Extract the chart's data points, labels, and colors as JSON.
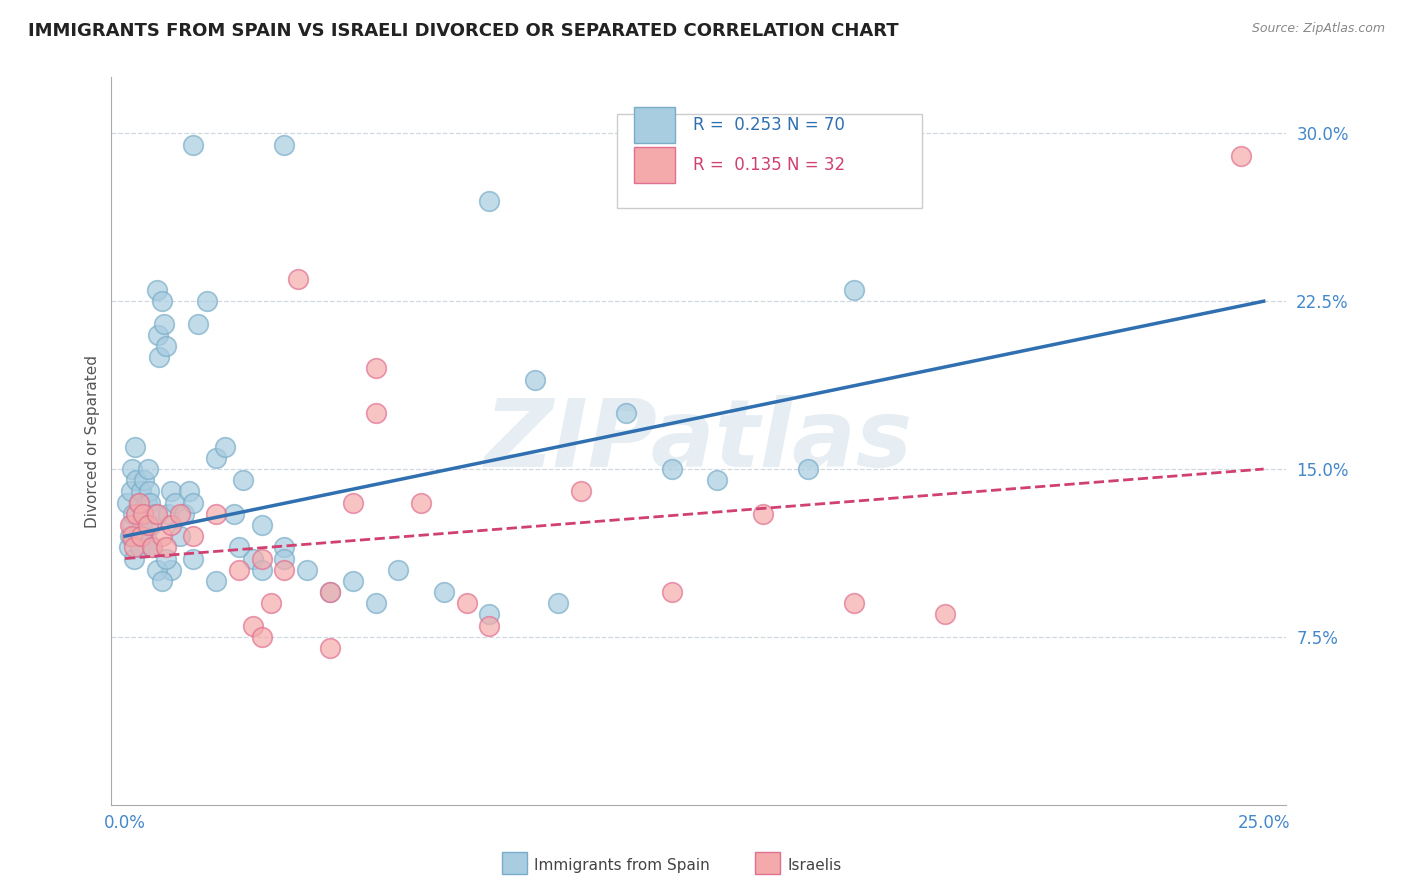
{
  "title": "IMMIGRANTS FROM SPAIN VS ISRAELI DIVORCED OR SEPARATED CORRELATION CHART",
  "source_text": "Source: ZipAtlas.com",
  "ylabel": "Divorced or Separated",
  "watermark": "ZIPatlas",
  "xlim": [
    -0.3,
    25.5
  ],
  "ylim": [
    0.0,
    32.5
  ],
  "xticks": [
    0.0,
    5.0,
    10.0,
    15.0,
    20.0,
    25.0
  ],
  "xticklabels": [
    "0.0%",
    "",
    "",
    "",
    "",
    "25.0%"
  ],
  "yticks": [
    7.5,
    15.0,
    22.5,
    30.0
  ],
  "yticklabels": [
    "7.5%",
    "15.0%",
    "22.5%",
    "30.0%"
  ],
  "legend_blue_R": "0.253",
  "legend_blue_N": "70",
  "legend_pink_R": "0.135",
  "legend_pink_N": "32",
  "legend_blue_label": "Immigrants from Spain",
  "legend_pink_label": "Israelis",
  "blue_color": "#a8cce0",
  "pink_color": "#f4aaaa",
  "blue_edge_color": "#7aadc8",
  "pink_edge_color": "#e07090",
  "blue_line_color": "#3070b0",
  "pink_line_color": "#d04070",
  "blue_trend_x0": 0.0,
  "blue_trend_y0": 12.0,
  "blue_trend_x1": 25.0,
  "blue_trend_y1": 22.5,
  "pink_trend_x0": 0.0,
  "pink_trend_y0": 11.0,
  "pink_trend_x1": 25.0,
  "pink_trend_y1": 15.0,
  "background_color": "#ffffff",
  "grid_color": "#d0d8e0",
  "tick_label_color": "#4488cc",
  "title_color": "#222222",
  "source_color": "#888888",
  "ylabel_color": "#555555"
}
